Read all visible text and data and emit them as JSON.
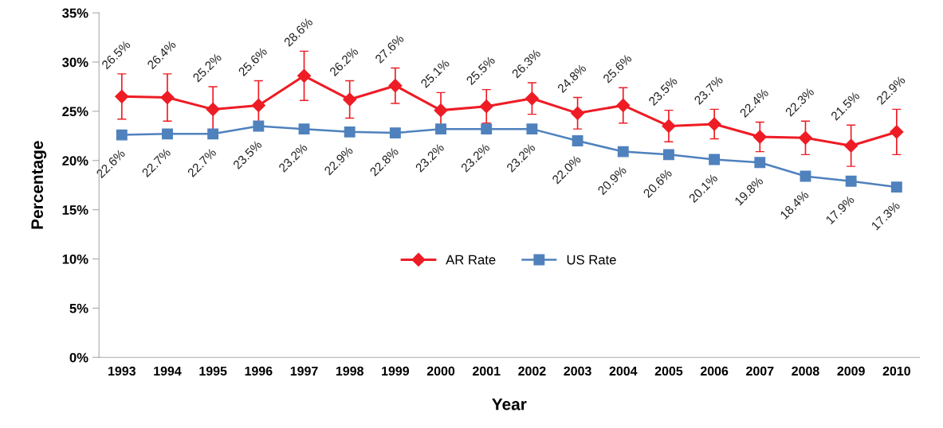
{
  "chart_data": {
    "type": "line",
    "xlabel": "Year",
    "ylabel": "Percentage",
    "categories": [
      "1993",
      "1994",
      "1995",
      "1996",
      "1997",
      "1998",
      "1999",
      "2000",
      "2001",
      "2002",
      "2003",
      "2004",
      "2005",
      "2006",
      "2007",
      "2008",
      "2009",
      "2010"
    ],
    "series": [
      {
        "name": "AR Rate",
        "color": "#ee1c25",
        "marker": "diamond",
        "values": [
          26.5,
          26.4,
          25.2,
          25.6,
          28.6,
          26.2,
          27.6,
          25.1,
          25.5,
          26.3,
          24.8,
          25.6,
          23.5,
          23.7,
          22.4,
          22.3,
          21.5,
          22.9
        ],
        "errors": [
          2.3,
          2.4,
          2.3,
          2.5,
          2.5,
          1.9,
          1.8,
          1.8,
          1.7,
          1.6,
          1.6,
          1.8,
          1.6,
          1.5,
          1.5,
          1.7,
          2.1,
          2.3
        ],
        "value_labels": [
          "26.5%",
          "26.4%",
          "25.2%",
          "25.6%",
          "28.6%",
          "26.2%",
          "27.6%",
          "25.1%",
          "25.5%",
          "26.3%",
          "24.8%",
          "25.6%",
          "23.5%",
          "23.7%",
          "22.4%",
          "22.3%",
          "21.5%",
          "22.9%"
        ]
      },
      {
        "name": "US Rate",
        "color": "#4f81bd",
        "marker": "square",
        "values": [
          22.6,
          22.7,
          22.7,
          23.5,
          23.2,
          22.9,
          22.8,
          23.2,
          23.2,
          23.2,
          22.0,
          20.9,
          20.6,
          20.1,
          19.8,
          18.4,
          17.9,
          17.3
        ],
        "value_labels": [
          "22.6%",
          "22.7%",
          "22.7%",
          "23.5%",
          "23.2%",
          "22.9%",
          "22.8%",
          "23.2%",
          "23.2%",
          "23.2%",
          "22.0%",
          "20.9%",
          "20.6%",
          "20.1%",
          "19.8%",
          "18.4%",
          "17.9%",
          "17.3%"
        ]
      }
    ],
    "ylim": [
      0,
      35
    ],
    "yticks": [
      {
        "value": 0,
        "label": "0%"
      },
      {
        "value": 5,
        "label": "5%"
      },
      {
        "value": 10,
        "label": "10%"
      },
      {
        "value": 15,
        "label": "15%"
      },
      {
        "value": 20,
        "label": "20%"
      },
      {
        "value": 25,
        "label": "25%"
      },
      {
        "value": 30,
        "label": "30%"
      },
      {
        "value": 35,
        "label": "35%"
      }
    ],
    "grid": false,
    "legend": "center",
    "line_style": "solid"
  }
}
